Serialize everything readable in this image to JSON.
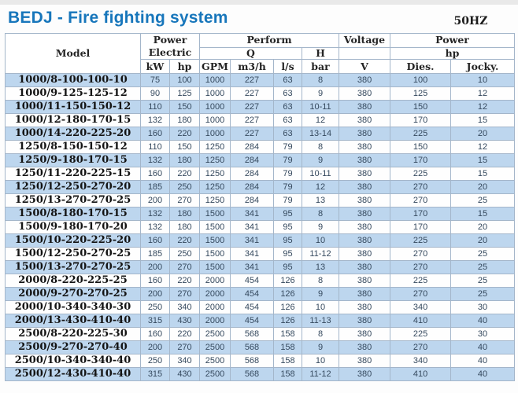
{
  "page": {
    "title": "BEDJ - Fire fighting system",
    "frequency": "50HZ"
  },
  "colors": {
    "title_blue": "#1776bb",
    "stripe_blue": "#bdd6ee",
    "border": "#a4b6ca",
    "number_text": "#35495e"
  },
  "table": {
    "header": {
      "model": "Model",
      "power_electric_line1": "Power",
      "power_electric_line2": "Electric",
      "perform": "Perform",
      "q": "Q",
      "h": "H",
      "voltage": "Voltage",
      "power_right": "Power",
      "hp_group": "hp",
      "units": [
        "kW",
        "hp",
        "GPM",
        "m3/h",
        "l/s",
        "bar",
        "V",
        "Dies.",
        "Jocky."
      ]
    },
    "rows": [
      [
        "1000/8-100-100-10",
        "75",
        "100",
        "1000",
        "227",
        "63",
        "8",
        "380",
        "100",
        "10"
      ],
      [
        "1000/9-125-125-12",
        "90",
        "125",
        "1000",
        "227",
        "63",
        "9",
        "380",
        "125",
        "12"
      ],
      [
        "1000/11-150-150-12",
        "110",
        "150",
        "1000",
        "227",
        "63",
        "10-11",
        "380",
        "150",
        "12"
      ],
      [
        "1000/12-180-170-15",
        "132",
        "180",
        "1000",
        "227",
        "63",
        "12",
        "380",
        "170",
        "15"
      ],
      [
        "1000/14-220-225-20",
        "160",
        "220",
        "1000",
        "227",
        "63",
        "13-14",
        "380",
        "225",
        "20"
      ],
      [
        "1250/8-150-150-12",
        "110",
        "150",
        "1250",
        "284",
        "79",
        "8",
        "380",
        "150",
        "12"
      ],
      [
        "1250/9-180-170-15",
        "132",
        "180",
        "1250",
        "284",
        "79",
        "9",
        "380",
        "170",
        "15"
      ],
      [
        "1250/11-220-225-15",
        "160",
        "220",
        "1250",
        "284",
        "79",
        "10-11",
        "380",
        "225",
        "15"
      ],
      [
        "1250/12-250-270-20",
        "185",
        "250",
        "1250",
        "284",
        "79",
        "12",
        "380",
        "270",
        "20"
      ],
      [
        "1250/13-270-270-25",
        "200",
        "270",
        "1250",
        "284",
        "79",
        "13",
        "380",
        "270",
        "25"
      ],
      [
        "1500/8-180-170-15",
        "132",
        "180",
        "1500",
        "341",
        "95",
        "8",
        "380",
        "170",
        "15"
      ],
      [
        "1500/9-180-170-20",
        "132",
        "180",
        "1500",
        "341",
        "95",
        "9",
        "380",
        "170",
        "20"
      ],
      [
        "1500/10-220-225-20",
        "160",
        "220",
        "1500",
        "341",
        "95",
        "10",
        "380",
        "225",
        "20"
      ],
      [
        "1500/12-250-270-25",
        "185",
        "250",
        "1500",
        "341",
        "95",
        "11-12",
        "380",
        "270",
        "25"
      ],
      [
        "1500/13-270-270-25",
        "200",
        "270",
        "1500",
        "341",
        "95",
        "13",
        "380",
        "270",
        "25"
      ],
      [
        "2000/8-220-225-25",
        "160",
        "220",
        "2000",
        "454",
        "126",
        "8",
        "380",
        "225",
        "25"
      ],
      [
        "2000/9-270-270-25",
        "200",
        "270",
        "2000",
        "454",
        "126",
        "9",
        "380",
        "270",
        "25"
      ],
      [
        "2000/10-340-340-30",
        "250",
        "340",
        "2000",
        "454",
        "126",
        "10",
        "380",
        "340",
        "30"
      ],
      [
        "2000/13-430-410-40",
        "315",
        "430",
        "2000",
        "454",
        "126",
        "11-13",
        "380",
        "410",
        "40"
      ],
      [
        "2500/8-220-225-30",
        "160",
        "220",
        "2500",
        "568",
        "158",
        "8",
        "380",
        "225",
        "30"
      ],
      [
        "2500/9-270-270-40",
        "200",
        "270",
        "2500",
        "568",
        "158",
        "9",
        "380",
        "270",
        "40"
      ],
      [
        "2500/10-340-340-40",
        "250",
        "340",
        "2500",
        "568",
        "158",
        "10",
        "380",
        "340",
        "40"
      ],
      [
        "2500/12-430-410-40",
        "315",
        "430",
        "2500",
        "568",
        "158",
        "11-12",
        "380",
        "410",
        "40"
      ]
    ]
  }
}
